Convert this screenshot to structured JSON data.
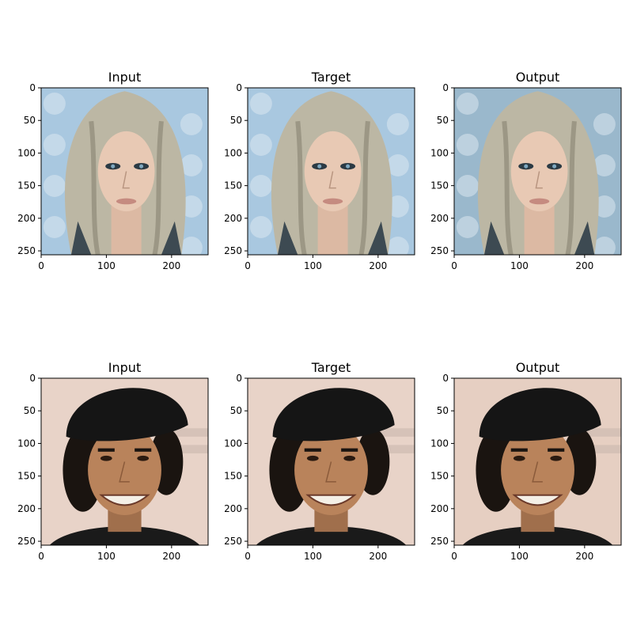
{
  "panels": [
    {
      "title": "Input",
      "row": 0,
      "col": 0,
      "subject": "woman-long-hair",
      "background_color": "#a9c8e0"
    },
    {
      "title": "Target",
      "row": 0,
      "col": 1,
      "subject": "woman-long-hair",
      "background_color": "#a9c8e0"
    },
    {
      "title": "Output",
      "row": 0,
      "col": 2,
      "subject": "woman-long-hair",
      "background_color": "#9ab8cc"
    },
    {
      "title": "Input",
      "row": 1,
      "col": 0,
      "subject": "man-black-cap",
      "background_color": "#e8d3c8"
    },
    {
      "title": "Target",
      "row": 1,
      "col": 1,
      "subject": "man-black-cap",
      "background_color": "#e8d3c8"
    },
    {
      "title": "Output",
      "row": 1,
      "col": 2,
      "subject": "man-black-cap",
      "background_color": "#e6cfc2"
    }
  ],
  "axes": {
    "xticks": [
      0,
      100,
      200
    ],
    "yticks": [
      0,
      50,
      100,
      150,
      200,
      250
    ],
    "range": [
      0,
      256
    ]
  },
  "colors": {
    "skin_woman": "#e8c9b4",
    "hair_woman": "#bcb7a4",
    "skin_man": "#b9835b",
    "cap_man": "#151515",
    "shirt_man": "#1a1a1a"
  }
}
